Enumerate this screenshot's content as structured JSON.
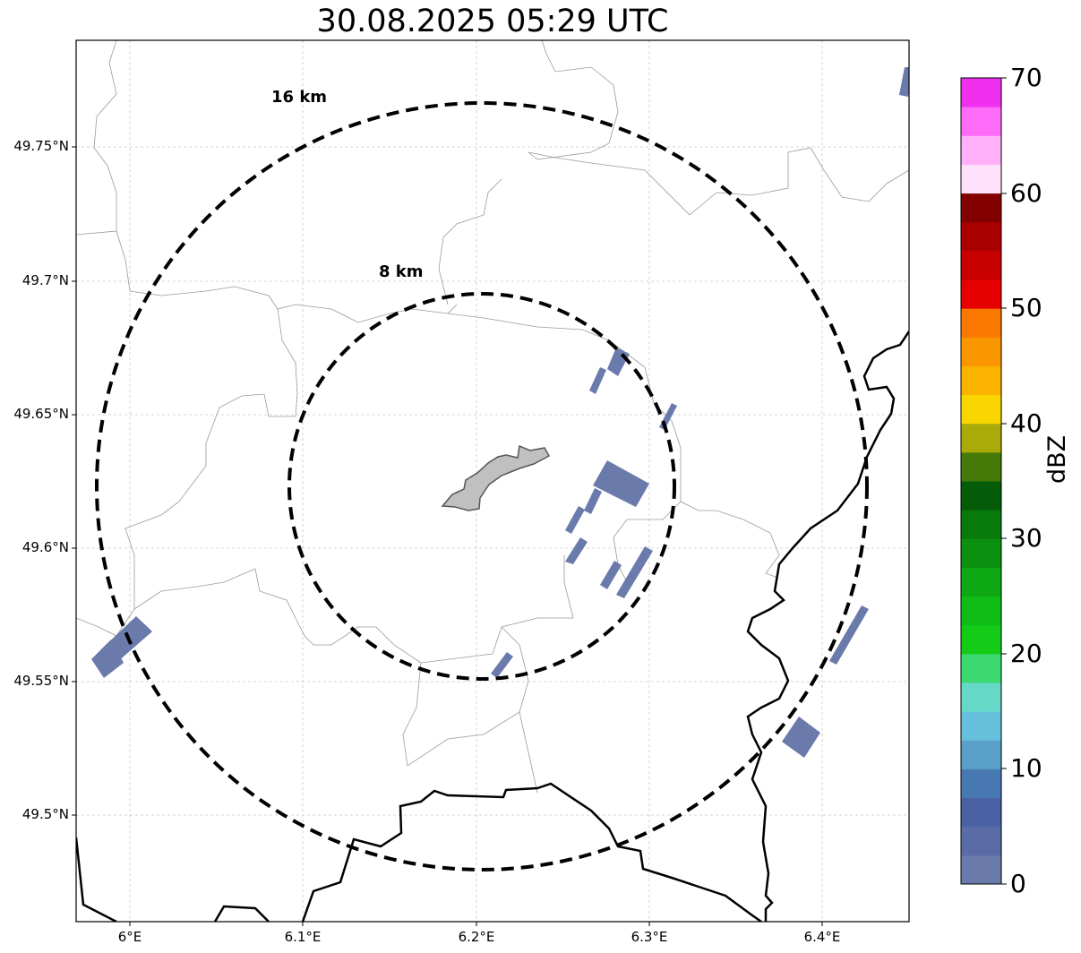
{
  "title": "30.08.2025 05:29 UTC",
  "axes": {
    "lat_ticks": [
      "49.75°N",
      "49.7°N",
      "49.65°N",
      "49.6°N",
      "49.55°N",
      "49.5°N"
    ],
    "lon_ticks": [
      "6°E",
      "6.1°E",
      "6.2°E",
      "6.3°E",
      "6.4°E"
    ],
    "grid": true
  },
  "range_rings": [
    {
      "label": "8 km"
    },
    {
      "label": "16 km"
    }
  ],
  "colorbar": {
    "label": "dBZ",
    "ticks": [
      "0",
      "10",
      "20",
      "30",
      "40",
      "50",
      "60",
      "70"
    ],
    "colors": [
      "#6a7aaa",
      "#5a6ca6",
      "#4a62a4",
      "#4878b2",
      "#58a0c8",
      "#66c0dc",
      "#66d8c8",
      "#3cd870",
      "#14cc18",
      "#10bc16",
      "#0ea814",
      "#0c9010",
      "#087a0c",
      "#045c08",
      "#467a08",
      "#aaaa08",
      "#fad600",
      "#fab400",
      "#fa9600",
      "#fa7800",
      "#e60000",
      "#c80000",
      "#aa0000",
      "#820000",
      "#ffe0fa",
      "#ffb0f8",
      "#ff6cfa",
      "#f030ee"
    ]
  },
  "colors": {
    "radar_echo": "#6a7aaa",
    "city_fill": "#c0c0c0",
    "border": "#000000",
    "admin_lines": "#999999"
  }
}
